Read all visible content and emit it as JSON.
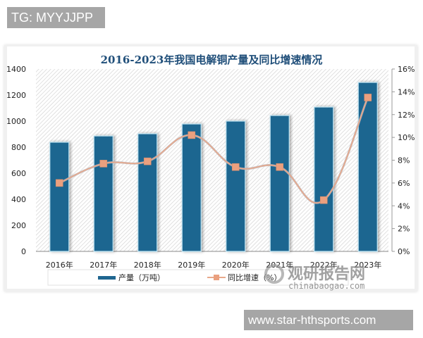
{
  "watermarks": {
    "top": "TG: MYYJJPP",
    "bottom": "www.star-hthsports.com",
    "logo_cn": "观研报告网",
    "logo_en": "chinabaogao.com"
  },
  "colors": {
    "bar": "#1f6690",
    "bar_edge": "#bfe4f2",
    "line": "#e8a88a",
    "marker": "#eaa07f",
    "title": "#1f4e79"
  },
  "chart_data": {
    "type": "bar+line",
    "title": "2016-2023年我国电解铜产量及同比增速情况",
    "categories": [
      "2016年",
      "2017年",
      "2018年",
      "2019年",
      "2020年",
      "2021年",
      "2022年",
      "2023年"
    ],
    "series": [
      {
        "name": "产量（万吨）",
        "type": "bar",
        "axis": "left",
        "values": [
          838,
          886,
          903,
          978,
          1000,
          1043,
          1108,
          1297
        ]
      },
      {
        "name": "同比增速（%）",
        "type": "line",
        "axis": "right",
        "values": [
          6.0,
          7.7,
          7.9,
          10.2,
          7.4,
          7.4,
          4.5,
          13.5
        ]
      }
    ],
    "left_axis": {
      "ticks": [
        "0",
        "200",
        "400",
        "600",
        "800",
        "1000",
        "1200",
        "1400"
      ],
      "ylim": [
        0,
        1400
      ]
    },
    "right_axis": {
      "ticks": [
        "0%",
        "2%",
        "4%",
        "6%",
        "8%",
        "10%",
        "12%",
        "14%",
        "16%"
      ],
      "ylim": [
        0,
        16
      ]
    },
    "xlabel": "",
    "ylabel": "",
    "legend_position": "bottom",
    "grid": false,
    "background": "diagonal hatch"
  }
}
